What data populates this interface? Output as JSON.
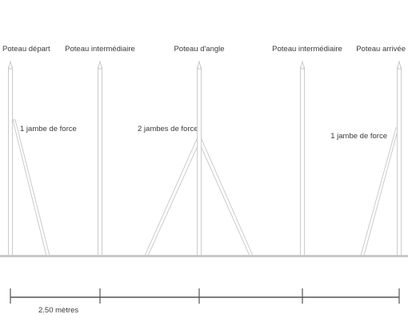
{
  "posts": [
    {
      "label": "Poteau départ"
    },
    {
      "label": "Poteau intermédiaire"
    },
    {
      "label": "Poteau d'angle"
    },
    {
      "label": "Poteau intermédiaire"
    },
    {
      "label": "Poteau arrivée"
    }
  ],
  "braces": [
    {
      "label": "1 jambe de force"
    },
    {
      "label": "2 jambes de forces"
    },
    {
      "label": "1 jambe de force"
    }
  ],
  "scale": {
    "label": "2.50 mètres"
  },
  "colors": {
    "structure_stroke": "#c6c6c6",
    "ground": "#c8c8c8",
    "scale_bar": "#555555",
    "text": "#3a3a3a"
  }
}
